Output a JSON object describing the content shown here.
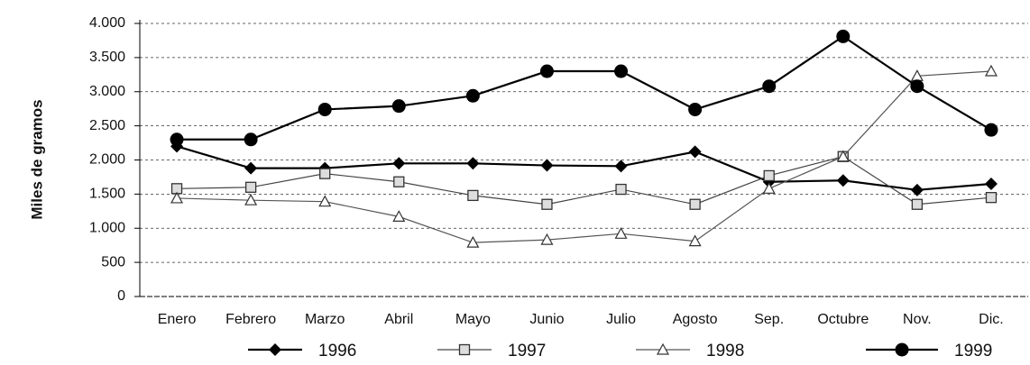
{
  "chart_data": {
    "type": "line",
    "y_label": "Miles de gramos",
    "categories": [
      "Enero",
      "Febrero",
      "Marzo",
      "Abril",
      "Mayo",
      "Junio",
      "Julio",
      "Agosto",
      "Sep.",
      "Octubre",
      "Nov.",
      "Dic."
    ],
    "series": [
      {
        "name": "1996",
        "color": "#000000",
        "marker": "diamond",
        "values": [
          2200,
          1880,
          1880,
          1950,
          1950,
          1920,
          1910,
          2120,
          1680,
          1700,
          1560,
          1650
        ]
      },
      {
        "name": "1997",
        "color": "#444444",
        "marker": "square",
        "values": [
          1580,
          1600,
          1800,
          1680,
          1480,
          1350,
          1570,
          1350,
          1770,
          2050,
          1350,
          1450
        ]
      },
      {
        "name": "1998",
        "color": "#555555",
        "marker": "triangle",
        "values": [
          1440,
          1410,
          1390,
          1170,
          790,
          830,
          920,
          810,
          1580,
          2050,
          3230,
          3300
        ]
      },
      {
        "name": "1999",
        "color": "#000000",
        "marker": "circle",
        "values": [
          2300,
          2300,
          2740,
          2790,
          2940,
          3300,
          3300,
          2740,
          3080,
          3810,
          3080,
          2440
        ]
      }
    ],
    "ylim": [
      0,
      4000
    ],
    "yticks": [
      0,
      500,
      {
        "value": 1000,
        "label": "1.000"
      },
      {
        "value": 1500,
        "label": "1.500"
      },
      {
        "value": 2000,
        "label": "2.000"
      },
      {
        "value": 2500,
        "label": "2.500"
      },
      {
        "value": 3000,
        "label": "3.000"
      },
      {
        "value": 3500,
        "label": "3.500"
      },
      {
        "value": 4000,
        "label": "4.000"
      }
    ],
    "grid": true,
    "legend": "bottom"
  }
}
